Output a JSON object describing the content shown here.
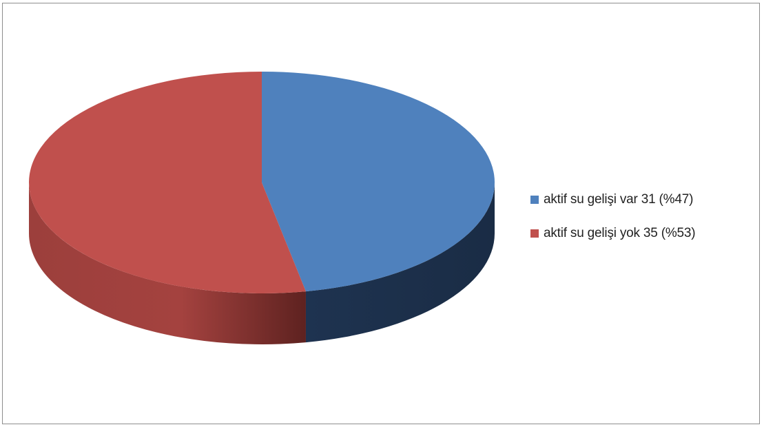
{
  "chart_data": {
    "type": "pie",
    "style": "3d",
    "title": "",
    "legend_position": "right",
    "slices": [
      {
        "label": "aktif su gelişi var 31 (%47)",
        "value": 31,
        "percent": 47,
        "color": "#4F81BD",
        "side_color": "#1F3350"
      },
      {
        "label": "aktif su gelişi yok 35 (%53)",
        "value": 35,
        "percent": 53,
        "color": "#C0504D",
        "side_color": "#7A2C2A"
      }
    ]
  }
}
